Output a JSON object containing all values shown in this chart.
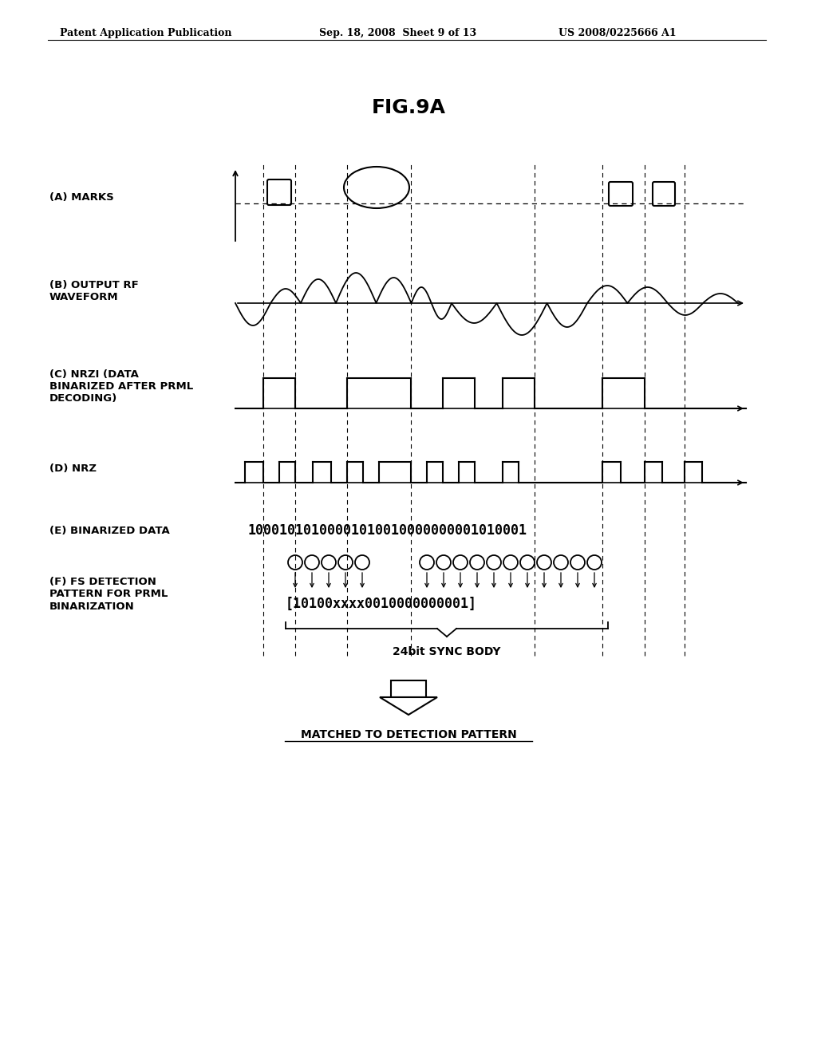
{
  "title": "FIG.9A",
  "header_left": "Patent Application Publication",
  "header_center": "Sep. 18, 2008  Sheet 9 of 13",
  "header_right": "US 2008/0225666 A1",
  "label_A": "(A) MARKS",
  "label_B": "(B) OUTPUT RF\nWAVEFORM",
  "label_C": "(C) NRZI (DATA\nBINARIZED AFTER PRML\nDECODING)",
  "label_D": "(D) NRZ",
  "label_E": "(E) BINARIZED DATA",
  "label_F": "(F) FS DETECTION\nPATTERN FOR PRML\nBINARIZATION",
  "binarized_data": "10001010100001010010000000001010001",
  "detection_pattern": "[10100xxxx0010000000001]",
  "sync_body_label": "24bit SYNC BODY",
  "matched_label": "MATCHED TO DETECTION PATTERN",
  "background_color": "#ffffff",
  "line_color": "#000000"
}
